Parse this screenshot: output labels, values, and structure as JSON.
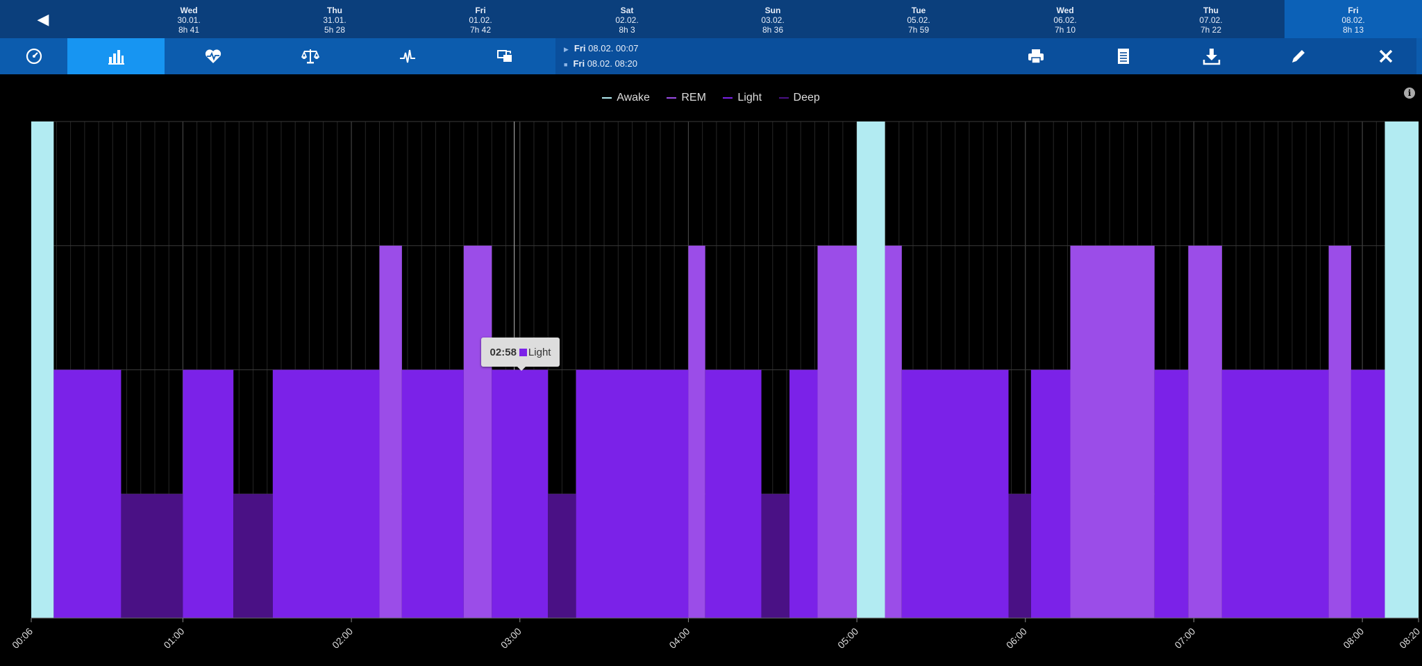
{
  "day_nav": {
    "prev_icon": "chevron-left-icon",
    "days": [
      {
        "dow": "Wed",
        "date": "30.01.",
        "duration": "8h 41"
      },
      {
        "dow": "Thu",
        "date": "31.01.",
        "duration": "5h 28"
      },
      {
        "dow": "Fri",
        "date": "01.02.",
        "duration": "7h 42"
      },
      {
        "dow": "Sat",
        "date": "02.02.",
        "duration": "8h 3"
      },
      {
        "dow": "Sun",
        "date": "03.02.",
        "duration": "8h 36"
      },
      {
        "dow": "Tue",
        "date": "05.02.",
        "duration": "7h 59"
      },
      {
        "dow": "Wed",
        "date": "06.02.",
        "duration": "7h 10"
      },
      {
        "dow": "Thu",
        "date": "07.02.",
        "duration": "7h 22"
      },
      {
        "dow": "Fri",
        "date": "08.02.",
        "duration": "8h 13"
      }
    ],
    "active_index": 8
  },
  "toolbar": {
    "tabs": [
      "dashboard-icon",
      "bar-chart-icon",
      "heart-rate-icon",
      "scale-icon",
      "pulse-icon",
      "transfer-icon"
    ],
    "active_tab": 1,
    "range": {
      "start_day": "Fri",
      "start_time": "08.02. 00:07",
      "end_day": "Fri",
      "end_time": "08.02. 08:20"
    },
    "actions": [
      "print-icon",
      "document-icon",
      "download-icon",
      "edit-icon",
      "close-icon"
    ]
  },
  "colors": {
    "awake": "#b2ebf2",
    "rem": "#9b4de8",
    "light": "#7b22e8",
    "deep": "#4a1185",
    "background": "#000000",
    "accent": "#1795f2"
  },
  "tooltip": {
    "time": "02:58",
    "stage": "Light"
  },
  "chart_data": {
    "type": "area",
    "title": "",
    "legend": [
      "Awake",
      "REM",
      "Light",
      "Deep"
    ],
    "legend_position": "top-center",
    "stage_levels": {
      "Awake": 4,
      "REM": 3,
      "Light": 2,
      "Deep": 1
    },
    "x_ticks": [
      "00:06",
      "01:00",
      "02:00",
      "03:00",
      "04:00",
      "05:00",
      "06:00",
      "07:00",
      "08:00",
      "08:20"
    ],
    "x_range": [
      "00:06",
      "08:20"
    ],
    "grid": true,
    "segments": [
      {
        "start": "00:06",
        "end": "00:14",
        "stage": "Awake"
      },
      {
        "start": "00:14",
        "end": "00:38",
        "stage": "Light"
      },
      {
        "start": "00:38",
        "end": "01:00",
        "stage": "Deep"
      },
      {
        "start": "01:00",
        "end": "01:18",
        "stage": "Light"
      },
      {
        "start": "01:18",
        "end": "01:32",
        "stage": "Deep"
      },
      {
        "start": "01:32",
        "end": "02:10",
        "stage": "Light"
      },
      {
        "start": "02:10",
        "end": "02:18",
        "stage": "REM"
      },
      {
        "start": "02:18",
        "end": "02:40",
        "stage": "Light"
      },
      {
        "start": "02:40",
        "end": "02:50",
        "stage": "REM"
      },
      {
        "start": "02:50",
        "end": "03:10",
        "stage": "Light"
      },
      {
        "start": "03:10",
        "end": "03:20",
        "stage": "Deep"
      },
      {
        "start": "03:20",
        "end": "04:00",
        "stage": "Light"
      },
      {
        "start": "04:00",
        "end": "04:06",
        "stage": "REM"
      },
      {
        "start": "04:06",
        "end": "04:26",
        "stage": "Light"
      },
      {
        "start": "04:26",
        "end": "04:36",
        "stage": "Deep"
      },
      {
        "start": "04:36",
        "end": "04:46",
        "stage": "Light"
      },
      {
        "start": "04:46",
        "end": "05:00",
        "stage": "REM"
      },
      {
        "start": "05:00",
        "end": "05:10",
        "stage": "Awake"
      },
      {
        "start": "05:10",
        "end": "05:16",
        "stage": "REM"
      },
      {
        "start": "05:16",
        "end": "05:54",
        "stage": "Light"
      },
      {
        "start": "05:54",
        "end": "06:02",
        "stage": "Deep"
      },
      {
        "start": "06:02",
        "end": "06:16",
        "stage": "Light"
      },
      {
        "start": "06:16",
        "end": "06:46",
        "stage": "REM"
      },
      {
        "start": "06:46",
        "end": "06:58",
        "stage": "Light"
      },
      {
        "start": "06:58",
        "end": "07:10",
        "stage": "REM"
      },
      {
        "start": "07:10",
        "end": "07:48",
        "stage": "Light"
      },
      {
        "start": "07:48",
        "end": "07:56",
        "stage": "REM"
      },
      {
        "start": "07:56",
        "end": "08:08",
        "stage": "Light"
      },
      {
        "start": "08:08",
        "end": "08:20",
        "stage": "Awake"
      }
    ]
  }
}
